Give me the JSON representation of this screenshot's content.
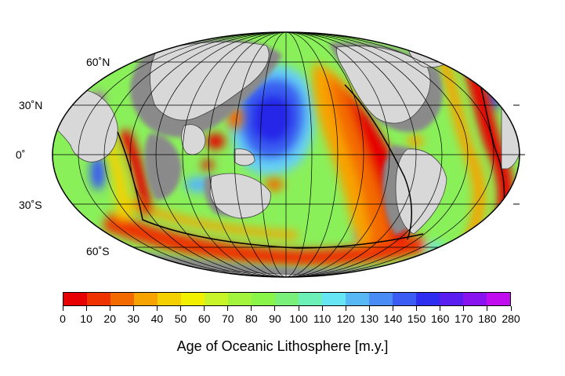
{
  "map": {
    "projection": "mollweide",
    "land_color": "#d8d8d8",
    "continental_shelf_color": "#8a8a8a",
    "graticule_color": "#000000",
    "lat_labels": [
      {
        "lat": 60,
        "text": "60˚N"
      },
      {
        "lat": 30,
        "text": "30˚N"
      },
      {
        "lat": 0,
        "text": "0˚"
      },
      {
        "lat": -30,
        "text": "30˚S"
      },
      {
        "lat": -60,
        "text": "60˚S"
      }
    ]
  },
  "colorbar": {
    "title": "Age of Oceanic Lithosphere [m.y.]",
    "ticks": [
      "0",
      "10",
      "20",
      "30",
      "40",
      "50",
      "60",
      "70",
      "80",
      "90",
      "100",
      "110",
      "120",
      "130",
      "140",
      "150",
      "160",
      "170",
      "180",
      "280"
    ],
    "colors": [
      "#e60000",
      "#ee3300",
      "#f36a00",
      "#f7a300",
      "#f5d000",
      "#f0f000",
      "#c8f52a",
      "#a2f53c",
      "#88f548",
      "#78f07a",
      "#6cf0b8",
      "#66e6f5",
      "#58b8f5",
      "#4a8cf5",
      "#3a5cf2",
      "#2e2ef0",
      "#5a1ef0",
      "#8a14f0",
      "#c20cf0"
    ]
  }
}
